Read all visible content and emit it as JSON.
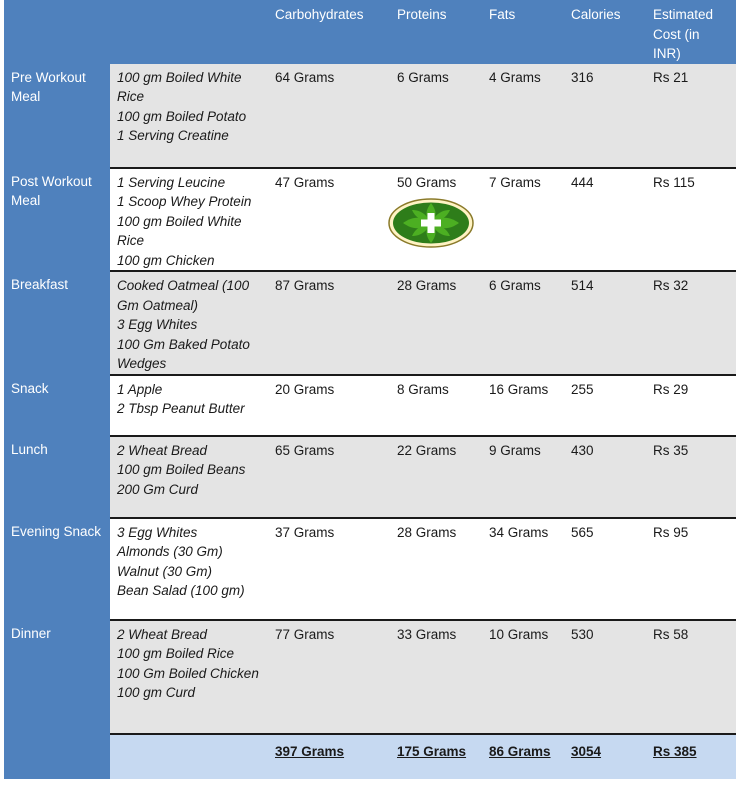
{
  "headers": [
    "",
    "",
    "Carbohydrates",
    "Proteins",
    "Fats",
    "Calories",
    "Estimated Cost (in INR)"
  ],
  "rows": [
    {
      "meal": "Pre Workout Meal",
      "foods": [
        "100 gm Boiled White Rice",
        "100 gm Boiled Potato",
        "1 Serving Creatine"
      ],
      "carbs": "64 Grams",
      "proteins": "6 Grams",
      "fats": "4 Grams",
      "calories": "316",
      "cost": "Rs 21"
    },
    {
      "meal": "Post Workout Meal",
      "foods": [
        "1 Serving Leucine",
        "1 Scoop Whey Protein",
        "100 gm Boiled White Rice",
        "100 gm Chicken"
      ],
      "carbs": "47 Grams",
      "proteins": "50 Grams",
      "fats": "7 Grams",
      "calories": "444",
      "cost": "Rs 115"
    },
    {
      "meal": "Breakfast",
      "foods": [
        "Cooked Oatmeal (100 Gm Oatmeal)",
        "3 Egg Whites",
        "100 Gm Baked Potato Wedges"
      ],
      "carbs": "87 Grams",
      "proteins": "28 Grams",
      "fats": "6 Grams",
      "calories": "514",
      "cost": "Rs 32"
    },
    {
      "meal": "Snack",
      "foods": [
        "1 Apple",
        "2 Tbsp Peanut Butter"
      ],
      "carbs": "20 Grams",
      "proteins": "8 Grams",
      "fats": "16 Grams",
      "calories": "255",
      "cost": "Rs 29"
    },
    {
      "meal": "Lunch",
      "foods": [
        "2 Wheat Bread",
        "100 gm Boiled Beans",
        "200 Gm Curd"
      ],
      "carbs": "65 Grams",
      "proteins": "22 Grams",
      "fats": "9 Grams",
      "calories": "430",
      "cost": "Rs 35"
    },
    {
      "meal": "Evening Snack",
      "foods": [
        "3 Egg Whites",
        "Almonds (30 Gm)",
        "Walnut (30 Gm)",
        "Bean  Salad (100 gm)"
      ],
      "carbs": "37 Grams",
      "proteins": "28 Grams",
      "fats": "34 Grams",
      "calories": "565",
      "cost": "Rs 95"
    },
    {
      "meal": "Dinner",
      "foods": [
        "2 Wheat Bread",
        "100 gm Boiled Rice",
        "100 Gm Boiled Chicken",
        "100 gm Curd"
      ],
      "carbs": "77 Grams",
      "proteins": "33 Grams",
      "fats": "10 Grams",
      "calories": "530",
      "cost": "Rs 58"
    }
  ],
  "totals": {
    "carbs": "397 Grams",
    "proteins": "175 Grams",
    "fats": "86 Grams",
    "calories": "3054",
    "cost": "Rs 385"
  },
  "colors": {
    "header_blue": "#4f81bd",
    "row_gray": "#e4e4e4",
    "total_light_blue": "#c6d9f1",
    "logo_green": "#2e7d1a"
  },
  "icons": {
    "logo": "green-cross-leaf-logo-icon"
  }
}
